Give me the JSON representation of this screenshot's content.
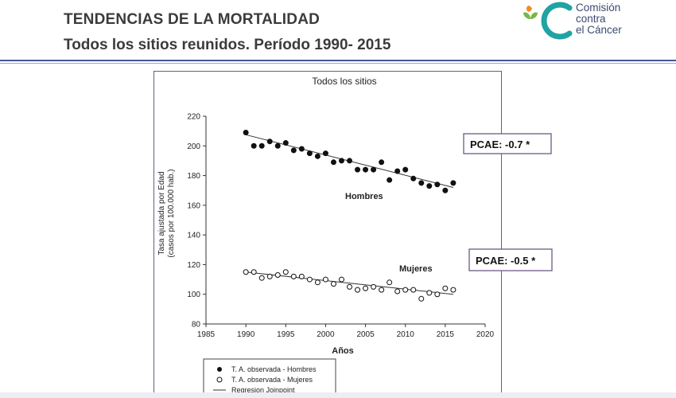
{
  "slide": {
    "title": "TENDENCIAS DE LA MORTALIDAD",
    "subtitle": "Todos los sitios reunidos. Período 1990- 2015"
  },
  "logo": {
    "lines": [
      "Comisión",
      "contra",
      "el Cáncer"
    ],
    "colors": {
      "green": "#7ab648",
      "teal": "#1fa3a3",
      "orange": "#f28c28",
      "text": "#3b4a73"
    }
  },
  "chart_data": {
    "type": "scatter",
    "title": "Todos los sitios",
    "xlabel": "Años",
    "ylabel": "Tasa ajustada por Edad",
    "ylabel2": "(casos por 100.000 hab.)",
    "xlim": [
      1985,
      2020
    ],
    "ylim": [
      80,
      220
    ],
    "xticks": [
      1985,
      1990,
      1995,
      2000,
      2005,
      2010,
      2015,
      2020
    ],
    "yticks": [
      80,
      100,
      120,
      140,
      160,
      180,
      200,
      220
    ],
    "grid": false,
    "series": [
      {
        "name": "T. A. observada - Hombres",
        "label": "Hombres",
        "marker": "filled-circle",
        "x": [
          1990,
          1991,
          1992,
          1993,
          1994,
          1995,
          1996,
          1997,
          1998,
          1999,
          2000,
          2001,
          2002,
          2003,
          2004,
          2005,
          2006,
          2007,
          2008,
          2009,
          2010,
          2011,
          2012,
          2013,
          2014,
          2015,
          2016
        ],
        "y": [
          209,
          200,
          200,
          203,
          200,
          202,
          197,
          198,
          195,
          193,
          195,
          189,
          190,
          190,
          184,
          184,
          184,
          189,
          177,
          183,
          184,
          178,
          175,
          173,
          174,
          170,
          175
        ],
        "regression": {
          "x": [
            1990,
            2016
          ],
          "y": [
            207.5,
            172
          ]
        },
        "pcae": "PCAE: -0.7 *"
      },
      {
        "name": "T. A. observada - Mujeres",
        "label": "Mujeres",
        "marker": "open-circle",
        "x": [
          1990,
          1991,
          1992,
          1993,
          1994,
          1995,
          1996,
          1997,
          1998,
          1999,
          2000,
          2001,
          2002,
          2003,
          2004,
          2005,
          2006,
          2007,
          2008,
          2009,
          2010,
          2011,
          2012,
          2013,
          2014,
          2015,
          2016
        ],
        "y": [
          115,
          115,
          111,
          112,
          113,
          115,
          112,
          112,
          110,
          108,
          110,
          107,
          110,
          105,
          103,
          104,
          105,
          103,
          108,
          102,
          103,
          103,
          97,
          101,
          100,
          104,
          103
        ],
        "regression": {
          "x": [
            1990,
            2016
          ],
          "y": [
            115,
            100
          ]
        },
        "pcae": "PCAE: -0.5 *"
      }
    ],
    "legend": {
      "placement": "bottom-left",
      "entries": [
        "T. A. observada - Hombres",
        "T. A. observada - Mujeres",
        "Regresion Joinpoint"
      ]
    }
  }
}
